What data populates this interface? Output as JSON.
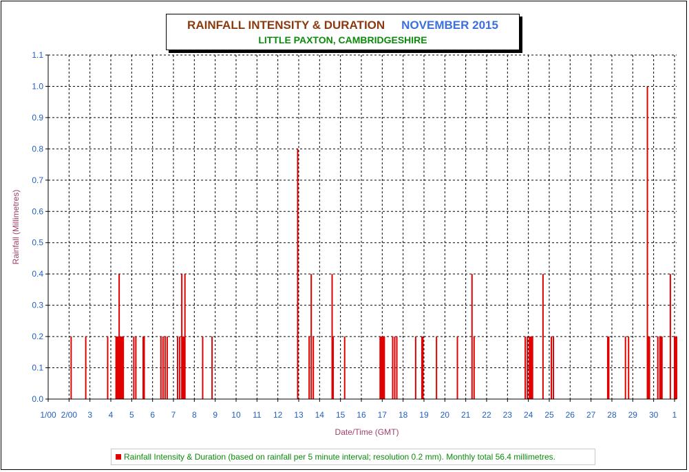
{
  "title": {
    "main": "RAINFALL INTENSITY & DURATION",
    "month": "NOVEMBER 2015",
    "location": "LITTLE PAXTON, CAMBRIDGESHIRE"
  },
  "legend": {
    "text": "Rainfall Intensity & Duration (based on rainfall per 5 minute interval; resolution 0.2 mm). Monthly total 56.4 millimetres."
  },
  "colors": {
    "bar": "#e00000",
    "tick_text": "#1f5fc0",
    "axis_label": "#a0406a",
    "title_main": "#8B3A10",
    "title_month": "#3A6FE0",
    "title_location": "#0B8A0B"
  },
  "chart_data": {
    "type": "bar",
    "title": "RAINFALL INTENSITY & DURATION",
    "xlabel": "Date/Time (GMT)",
    "ylabel": "Rainfall (Millimetres)",
    "ylim": [
      0,
      1.1
    ],
    "xlim": [
      1,
      31.1
    ],
    "yticks": [
      "0.0",
      "0.1",
      "0.2",
      "0.3",
      "0.4",
      "0.5",
      "0.6",
      "0.7",
      "0.8",
      "0.9",
      "1.0",
      "1.1"
    ],
    "xtick_labels": [
      "1/00",
      "2/00",
      "3",
      "4",
      "5",
      "6",
      "7",
      "8",
      "9",
      "10",
      "11",
      "12",
      "13",
      "14",
      "15",
      "16",
      "17",
      "18",
      "19",
      "20",
      "21",
      "22",
      "23",
      "24",
      "25",
      "26",
      "27",
      "28",
      "29",
      "30",
      "1"
    ],
    "grid": true,
    "legend_position": "bottom",
    "series": [
      {
        "unit": "mm per 5 minutes",
        "points": [
          [
            2.1,
            0.2
          ],
          [
            2.8,
            0.2
          ],
          [
            3.85,
            0.2
          ],
          [
            4.25,
            0.2
          ],
          [
            4.3,
            0.2
          ],
          [
            4.35,
            0.2
          ],
          [
            4.38,
            0.2
          ],
          [
            4.4,
            0.4
          ],
          [
            4.45,
            0.2
          ],
          [
            4.5,
            0.2
          ],
          [
            4.55,
            0.2
          ],
          [
            4.6,
            0.2
          ],
          [
            5.1,
            0.2
          ],
          [
            5.2,
            0.2
          ],
          [
            5.55,
            0.2
          ],
          [
            5.6,
            0.2
          ],
          [
            6.4,
            0.2
          ],
          [
            6.5,
            0.2
          ],
          [
            6.6,
            0.2
          ],
          [
            6.7,
            0.2
          ],
          [
            7.2,
            0.2
          ],
          [
            7.3,
            0.2
          ],
          [
            7.4,
            0.4
          ],
          [
            7.45,
            0.2
          ],
          [
            7.5,
            0.2
          ],
          [
            7.55,
            0.4
          ],
          [
            8.4,
            0.2
          ],
          [
            8.85,
            0.2
          ],
          [
            12.95,
            0.8
          ],
          [
            13.5,
            0.2
          ],
          [
            13.6,
            0.4
          ],
          [
            13.7,
            0.2
          ],
          [
            14.6,
            0.4
          ],
          [
            14.65,
            0.2
          ],
          [
            15.2,
            0.2
          ],
          [
            16.9,
            0.2
          ],
          [
            16.95,
            0.2
          ],
          [
            17.0,
            0.2
          ],
          [
            17.05,
            0.2
          ],
          [
            17.1,
            0.2
          ],
          [
            17.5,
            0.2
          ],
          [
            17.6,
            0.2
          ],
          [
            17.7,
            0.2
          ],
          [
            18.6,
            0.2
          ],
          [
            18.9,
            0.2
          ],
          [
            18.95,
            0.2
          ],
          [
            19.6,
            0.2
          ],
          [
            20.6,
            0.2
          ],
          [
            21.3,
            0.4
          ],
          [
            21.4,
            0.2
          ],
          [
            23.85,
            0.2
          ],
          [
            23.95,
            0.2
          ],
          [
            24.05,
            0.2
          ],
          [
            24.1,
            0.2
          ],
          [
            24.15,
            0.2
          ],
          [
            24.2,
            0.2
          ],
          [
            24.7,
            0.4
          ],
          [
            25.1,
            0.2
          ],
          [
            25.2,
            0.2
          ],
          [
            27.8,
            0.2
          ],
          [
            27.85,
            0.2
          ],
          [
            28.65,
            0.2
          ],
          [
            28.8,
            0.2
          ],
          [
            29.7,
            1.0
          ],
          [
            29.75,
            0.2
          ],
          [
            29.8,
            0.2
          ],
          [
            30.2,
            0.2
          ],
          [
            30.3,
            0.2
          ],
          [
            30.35,
            0.2
          ],
          [
            30.4,
            0.2
          ],
          [
            30.8,
            0.4
          ],
          [
            31.0,
            0.2
          ],
          [
            31.05,
            0.2
          ],
          [
            31.1,
            0.2
          ]
        ]
      }
    ]
  }
}
